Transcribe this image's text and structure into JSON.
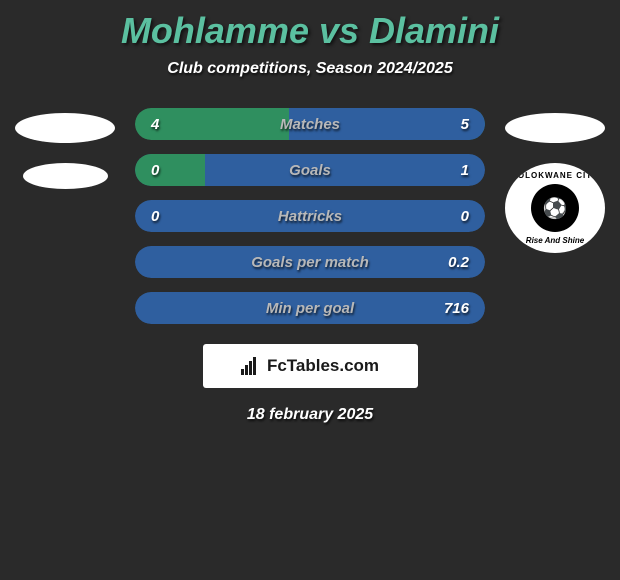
{
  "title": "Mohlamme vs Dlamini",
  "subtitle": "Club competitions, Season 2024/2025",
  "date": "18 february 2025",
  "logo_text": "FcTables.com",
  "colors": {
    "background": "#2a2a2a",
    "title": "#5bc0a0",
    "bar_green": "#2f8f5f",
    "bar_blue": "#2f5f9f",
    "bar_fill_green": "#3fa872",
    "bar_fill_blue": "#3a6fb8",
    "label": "#b8b8b8",
    "value": "#ffffff"
  },
  "club_badge": {
    "top": "POLOKWANE CITY",
    "bottom": "Rise And Shine"
  },
  "stats": [
    {
      "label": "Matches",
      "left_val": "4",
      "right_val": "5",
      "left_pct": 44,
      "right_pct": 56,
      "bg": "#2f8f5f",
      "right_color": "#2f5f9f"
    },
    {
      "label": "Goals",
      "left_val": "0",
      "right_val": "1",
      "left_pct": 0,
      "right_pct": 22,
      "bg": "#2f5f9f",
      "left_color": "#2f8f5f"
    },
    {
      "label": "Hattricks",
      "left_val": "0",
      "right_val": "0",
      "left_pct": 0,
      "right_pct": 0,
      "bg": "#2f5f9f"
    },
    {
      "label": "Goals per match",
      "left_val": "",
      "right_val": "0.2",
      "left_pct": 0,
      "right_pct": 0,
      "bg": "#2f5f9f"
    },
    {
      "label": "Min per goal",
      "left_val": "",
      "right_val": "716",
      "left_pct": 0,
      "right_pct": 0,
      "bg": "#2f5f9f"
    }
  ]
}
